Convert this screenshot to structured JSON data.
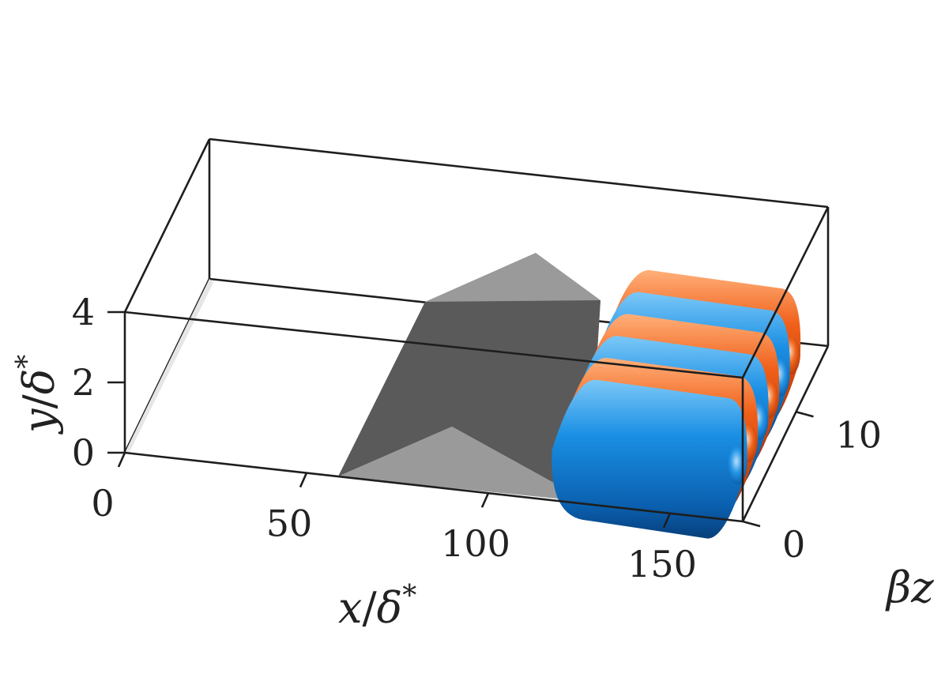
{
  "chart_data": {
    "type": "3d-isosurface",
    "title": "",
    "axes": {
      "x": {
        "label_var": "x",
        "label_den": "δ",
        "label_sup": "*",
        "range": [
          0,
          170
        ],
        "ticks": [
          0,
          50,
          100,
          150
        ],
        "tick_labels": [
          "0",
          "50",
          "100",
          "150"
        ]
      },
      "y": {
        "label_var": "y",
        "label_den": "δ",
        "label_sup": "*",
        "range": [
          0,
          4
        ],
        "ticks": [
          0,
          2,
          4
        ],
        "tick_labels": [
          "0",
          "2",
          "4"
        ]
      },
      "z": {
        "label": "βz",
        "range": [
          0,
          16
        ],
        "ticks": [
          0,
          10
        ],
        "tick_labels": [
          "0",
          "10"
        ]
      }
    },
    "grid": false,
    "colors": {
      "positive": "#f05f18",
      "negative": "#1a8fe4",
      "roughness_light": "#9a9a9a",
      "roughness_dark": "#5a5a5a"
    },
    "roughness_element": {
      "shape": "triangular ridge",
      "x_start": 58,
      "x_peak": 92,
      "x_end": 125
    },
    "streaks": [
      {
        "sign": "negative",
        "x_start": 120,
        "x_end": 165,
        "z": 0.5
      },
      {
        "sign": "positive",
        "x_start": 120,
        "x_end": 165,
        "z": 2.5
      },
      {
        "sign": "negative",
        "x_start": 120,
        "x_end": 165,
        "z": 4.5
      },
      {
        "sign": "positive",
        "x_start": 120,
        "x_end": 165,
        "z": 6.5
      },
      {
        "sign": "negative",
        "x_start": 120,
        "x_end": 165,
        "z": 8.5
      },
      {
        "sign": "positive",
        "x_start": 120,
        "x_end": 165,
        "z": 10.5
      }
    ]
  }
}
